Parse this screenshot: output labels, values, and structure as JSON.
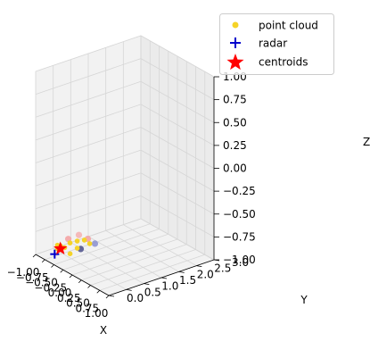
{
  "chart_data": {
    "type": "scatter",
    "projection": "3d",
    "title": "",
    "xlabel": "X",
    "ylabel": "Y",
    "zlabel": "Z",
    "xlim": [
      -1.0,
      1.0
    ],
    "ylim": [
      0.0,
      3.0
    ],
    "zlim": [
      -1.0,
      1.0
    ],
    "x_ticks": [
      -1.0,
      -0.75,
      -0.5,
      -0.25,
      0.0,
      0.25,
      0.5,
      0.75,
      1.0
    ],
    "x_tick_labels": [
      "−1.00",
      "−0.75",
      "−0.50",
      "−0.25",
      "0.00",
      "0.25",
      "0.50",
      "0.75",
      "1.00"
    ],
    "y_ticks": [
      0.0,
      0.5,
      1.0,
      1.5,
      2.0,
      2.5,
      3.0
    ],
    "y_tick_labels": [
      "0.0",
      "0.5",
      "1.0",
      "1.5",
      "2.0",
      "2.5",
      "3.0"
    ],
    "z_ticks": [
      -1.0,
      -0.75,
      -0.5,
      -0.25,
      0.0,
      0.25,
      0.5,
      0.75,
      1.0
    ],
    "z_tick_labels": [
      "−1.00",
      "−0.75",
      "−0.50",
      "−0.25",
      "0.00",
      "0.25",
      "0.50",
      "0.75",
      "1.00"
    ],
    "grid": true,
    "legend_position": "top-right",
    "series": [
      {
        "name": "point cloud",
        "marker": "circle",
        "color": "#f5d327",
        "points": [
          {
            "x": -0.45,
            "y": 0.05,
            "z": -0.82
          },
          {
            "x": -0.5,
            "y": 0.1,
            "z": -0.8
          },
          {
            "x": -0.4,
            "y": 0.08,
            "z": -0.78
          },
          {
            "x": -0.35,
            "y": 0.15,
            "z": -0.8
          },
          {
            "x": -0.3,
            "y": 0.25,
            "z": -0.75
          },
          {
            "x": -0.2,
            "y": 0.35,
            "z": -0.72
          },
          {
            "x": -0.15,
            "y": 0.3,
            "z": -0.78
          },
          {
            "x": -0.1,
            "y": 0.45,
            "z": -0.7
          },
          {
            "x": -0.05,
            "y": 0.55,
            "z": -0.74
          },
          {
            "x": -0.25,
            "y": 0.2,
            "z": -0.85
          }
        ]
      },
      {
        "name": "radar",
        "marker": "plus",
        "color": "#0000cc",
        "points": [
          {
            "x": -0.48,
            "y": 0.0,
            "z": -0.88
          }
        ]
      },
      {
        "name": "centroids",
        "marker": "star",
        "color": "#ff0000",
        "points": [
          {
            "x": -0.42,
            "y": 0.1,
            "z": -0.82
          }
        ]
      }
    ],
    "extra_points": [
      {
        "x": -0.2,
        "y": 0.45,
        "z": -0.82,
        "color": "#4b4f8a"
      },
      {
        "x": -0.05,
        "y": 0.7,
        "z": -0.76,
        "color": "#8a8fcf"
      },
      {
        "x": -0.3,
        "y": 0.2,
        "z": -0.7,
        "color": "#f4a0a0"
      },
      {
        "x": -0.1,
        "y": 0.55,
        "z": -0.7,
        "color": "#f4a0a0"
      },
      {
        "x": -0.2,
        "y": 0.4,
        "z": -0.66,
        "color": "#f6b0b0"
      }
    ]
  }
}
